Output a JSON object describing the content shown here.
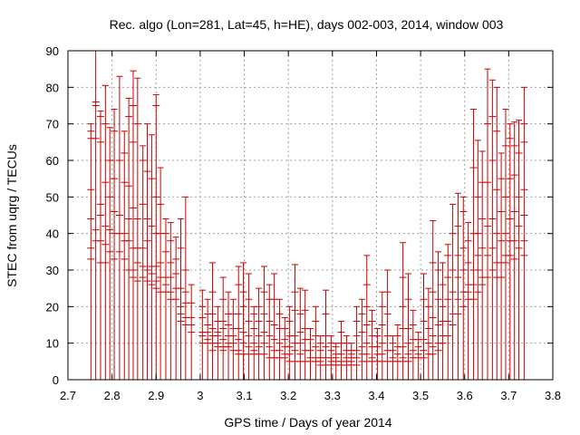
{
  "chart_data": {
    "type": "scatter",
    "style": "error-bars",
    "title": "Rec. algo (Lon=281, Lat=45, h=HE), days 002-003, 2014, window 003",
    "xlabel": "GPS time / Days of year 2014",
    "ylabel": "STEC from uqrg / TECUs",
    "xlim": [
      2.7,
      3.8
    ],
    "ylim": [
      0,
      90
    ],
    "xticks": [
      "2.7",
      "2.8",
      "2.9",
      "3",
      "3.1",
      "3.2",
      "3.3",
      "3.4",
      "3.5",
      "3.6",
      "3.7",
      "3.8"
    ],
    "yticks": [
      "0",
      "10",
      "20",
      "30",
      "40",
      "50",
      "60",
      "70",
      "80",
      "90"
    ],
    "grid": true,
    "color": "#cc0000",
    "errorbar_lower": 0,
    "points": [
      {
        "x": 2.752,
        "top": 70.0,
        "marks": [
          68,
          66,
          52,
          44,
          36,
          33
        ]
      },
      {
        "x": 2.763,
        "top": 90.0,
        "marks": [
          76,
          75,
          66,
          41,
          38
        ]
      },
      {
        "x": 2.774,
        "top": 73.5,
        "marks": [
          72,
          65,
          48,
          45,
          38,
          32
        ]
      },
      {
        "x": 2.785,
        "top": 80.5,
        "marks": [
          70,
          54,
          42,
          37,
          32
        ]
      },
      {
        "x": 2.795,
        "top": 69.0,
        "marks": [
          60,
          50,
          41,
          35
        ]
      },
      {
        "x": 2.805,
        "top": 74.0,
        "marks": [
          68,
          55,
          46,
          40,
          33
        ]
      },
      {
        "x": 2.817,
        "top": 83.0,
        "marks": [
          60,
          45,
          40,
          35
        ]
      },
      {
        "x": 2.828,
        "top": 68.0,
        "marks": [
          62,
          54,
          40,
          38,
          33
        ]
      },
      {
        "x": 2.838,
        "top": 77.0,
        "marks": [
          72,
          53,
          44,
          38,
          30
        ]
      },
      {
        "x": 2.848,
        "top": 84.5,
        "marks": [
          75,
          65,
          47,
          36,
          30,
          28
        ]
      },
      {
        "x": 2.858,
        "top": 82.5,
        "marks": [
          70,
          44,
          36,
          32,
          27
        ]
      },
      {
        "x": 2.87,
        "top": 64.0,
        "marks": [
          60,
          48,
          36,
          31,
          28
        ]
      },
      {
        "x": 2.88,
        "top": 70.0,
        "marks": [
          57,
          44,
          38,
          30,
          27
        ]
      },
      {
        "x": 2.89,
        "top": 67.0,
        "marks": [
          55,
          42,
          31,
          29,
          26
        ]
      },
      {
        "x": 2.9,
        "top": 78.0,
        "marks": [
          75,
          50,
          40,
          31,
          27,
          25
        ]
      },
      {
        "x": 2.91,
        "top": 58.0,
        "marks": [
          48,
          40,
          32,
          28,
          24
        ]
      },
      {
        "x": 2.922,
        "top": 44.0,
        "marks": [
          40,
          35,
          28,
          26,
          24
        ]
      },
      {
        "x": 2.933,
        "top": 43.0,
        "marks": [
          38,
          32,
          28,
          24,
          22
        ]
      },
      {
        "x": 2.945,
        "top": 39.0,
        "marks": [
          33,
          29,
          25,
          22
        ]
      },
      {
        "x": 2.956,
        "top": 44.0,
        "marks": [
          36,
          25,
          20,
          18,
          16
        ]
      },
      {
        "x": 2.967,
        "top": 50.0,
        "marks": [
          30,
          24,
          21,
          17,
          15
        ]
      },
      {
        "x": 2.98,
        "top": 26.0,
        "marks": [
          21,
          17,
          15,
          13
        ]
      },
      {
        "x": 3.005,
        "top": 24.5,
        "marks": [
          20,
          17,
          13,
          12,
          10
        ]
      },
      {
        "x": 3.017,
        "top": 22.0,
        "marks": [
          18,
          15,
          13,
          11,
          10
        ]
      },
      {
        "x": 3.028,
        "top": 32.0,
        "marks": [
          24,
          18,
          14,
          12,
          10,
          8
        ]
      },
      {
        "x": 3.04,
        "top": 20.0,
        "marks": [
          16,
          13,
          12,
          10,
          9
        ]
      },
      {
        "x": 3.052,
        "top": 28.0,
        "marks": [
          22,
          16,
          14,
          11,
          9,
          8
        ]
      },
      {
        "x": 3.064,
        "top": 24.0,
        "marks": [
          18,
          15,
          12,
          10,
          9
        ]
      },
      {
        "x": 3.075,
        "top": 22.0,
        "marks": [
          18,
          14,
          12,
          10,
          8
        ]
      },
      {
        "x": 3.087,
        "top": 31.0,
        "marks": [
          26,
          18,
          14,
          11,
          8,
          7
        ]
      },
      {
        "x": 3.098,
        "top": 32.0,
        "marks": [
          24,
          20,
          13,
          10,
          7
        ]
      },
      {
        "x": 3.11,
        "top": 29.0,
        "marks": [
          22,
          16,
          12,
          9,
          7
        ]
      },
      {
        "x": 3.122,
        "top": 20.0,
        "marks": [
          18,
          14,
          10,
          8,
          7
        ]
      },
      {
        "x": 3.133,
        "top": 25.0,
        "marks": [
          20,
          16,
          12,
          9,
          7
        ]
      },
      {
        "x": 3.145,
        "top": 31.0,
        "marks": [
          24,
          18,
          13,
          10,
          7
        ]
      },
      {
        "x": 3.157,
        "top": 26.0,
        "marks": [
          22,
          16,
          12,
          9,
          6
        ]
      },
      {
        "x": 3.168,
        "top": 29.0,
        "marks": [
          22,
          15,
          11,
          8,
          6
        ]
      },
      {
        "x": 3.18,
        "top": 22.0,
        "marks": [
          18,
          14,
          10,
          8,
          6
        ]
      },
      {
        "x": 3.192,
        "top": 17.0,
        "marks": [
          14,
          11,
          9,
          7,
          6
        ]
      },
      {
        "x": 3.203,
        "top": 20.0,
        "marks": [
          16,
          12,
          9,
          7,
          5
        ]
      },
      {
        "x": 3.215,
        "top": 31.5,
        "marks": [
          24,
          19,
          12,
          10,
          8,
          5
        ]
      },
      {
        "x": 3.227,
        "top": 25.0,
        "marks": [
          18,
          13,
          10,
          7,
          5
        ]
      },
      {
        "x": 3.238,
        "top": 24.5,
        "marks": [
          19,
          14,
          11,
          8,
          5
        ]
      },
      {
        "x": 3.25,
        "top": 14.0,
        "marks": [
          11,
          8,
          6,
          5
        ]
      },
      {
        "x": 3.262,
        "top": 20.0,
        "marks": [
          16,
          12,
          9,
          6,
          5
        ]
      },
      {
        "x": 3.273,
        "top": 12.0,
        "marks": [
          10,
          8,
          6,
          5,
          4
        ]
      },
      {
        "x": 3.285,
        "top": 24.5,
        "marks": [
          18,
          12,
          9,
          6,
          4
        ]
      },
      {
        "x": 3.297,
        "top": 12.0,
        "marks": [
          10,
          8,
          6,
          5,
          4
        ]
      },
      {
        "x": 3.308,
        "top": 10.0,
        "marks": [
          9,
          7,
          6,
          5,
          4
        ]
      },
      {
        "x": 3.32,
        "top": 16.0,
        "marks": [
          13,
          10,
          7,
          5,
          4
        ]
      },
      {
        "x": 3.332,
        "top": 12.0,
        "marks": [
          10,
          8,
          6,
          5,
          4
        ]
      },
      {
        "x": 3.343,
        "top": 10.0,
        "marks": [
          8,
          7,
          6,
          5,
          4
        ]
      },
      {
        "x": 3.355,
        "top": 20.0,
        "marks": [
          16,
          12,
          8,
          6,
          4
        ]
      },
      {
        "x": 3.367,
        "top": 22.0,
        "marks": [
          18,
          13,
          9,
          7,
          5
        ]
      },
      {
        "x": 3.378,
        "top": 34.0,
        "marks": [
          26,
          20,
          15,
          10,
          7,
          5
        ]
      },
      {
        "x": 3.39,
        "top": 19.0,
        "marks": [
          16,
          12,
          9,
          6,
          5
        ]
      },
      {
        "x": 3.402,
        "top": 14.0,
        "marks": [
          12,
          9,
          7,
          5
        ]
      },
      {
        "x": 3.413,
        "top": 24.0,
        "marks": [
          20,
          15,
          10,
          7,
          5
        ]
      },
      {
        "x": 3.425,
        "top": 30.0,
        "marks": [
          24,
          18,
          12,
          8,
          5
        ]
      },
      {
        "x": 3.437,
        "top": 12.0,
        "marks": [
          10,
          8,
          6,
          5
        ]
      },
      {
        "x": 3.448,
        "top": 15.0,
        "marks": [
          12,
          9,
          7,
          5
        ]
      },
      {
        "x": 3.46,
        "top": 37.5,
        "marks": [
          28,
          20,
          14,
          9,
          6,
          5
        ]
      },
      {
        "x": 3.472,
        "top": 29.0,
        "marks": [
          22,
          14,
          10,
          7,
          5
        ]
      },
      {
        "x": 3.483,
        "top": 19.0,
        "marks": [
          15,
          11,
          8,
          6
        ]
      },
      {
        "x": 3.495,
        "top": 13.0,
        "marks": [
          11,
          9,
          7,
          6
        ]
      },
      {
        "x": 3.507,
        "top": 29.0,
        "marks": [
          22,
          16,
          11,
          8,
          6
        ]
      },
      {
        "x": 3.518,
        "top": 25.0,
        "marks": [
          20,
          14,
          10,
          7
        ]
      },
      {
        "x": 3.528,
        "top": 43.5,
        "marks": [
          32,
          24,
          17,
          12,
          9,
          7
        ]
      },
      {
        "x": 3.54,
        "top": 35.0,
        "marks": [
          30,
          22,
          15,
          10,
          8
        ]
      },
      {
        "x": 3.55,
        "top": 32.0,
        "marks": [
          26,
          20,
          16,
          12,
          10
        ]
      },
      {
        "x": 3.562,
        "top": 37.0,
        "marks": [
          34,
          28,
          22,
          16,
          12
        ]
      },
      {
        "x": 3.573,
        "top": 48.0,
        "marks": [
          40,
          30,
          24,
          18,
          15
        ]
      },
      {
        "x": 3.585,
        "top": 51.0,
        "marks": [
          42,
          34,
          28,
          22,
          18
        ]
      },
      {
        "x": 3.597,
        "top": 50.0,
        "marks": [
          46,
          36,
          30,
          24,
          20
        ]
      },
      {
        "x": 3.608,
        "top": 43.0,
        "marks": [
          38,
          32,
          26,
          24,
          22
        ]
      },
      {
        "x": 3.62,
        "top": 74.0,
        "marks": [
          58,
          40,
          30,
          26,
          22
        ]
      },
      {
        "x": 3.63,
        "top": 65.5,
        "marks": [
          50,
          40,
          34,
          30,
          24
        ]
      },
      {
        "x": 3.64,
        "top": 62.5,
        "marks": [
          54,
          44,
          36,
          28,
          26
        ]
      },
      {
        "x": 3.652,
        "top": 85.0,
        "marks": [
          70,
          54,
          42,
          34,
          28
        ]
      },
      {
        "x": 3.663,
        "top": 82.0,
        "marks": [
          72,
          60,
          44,
          36,
          30
        ]
      },
      {
        "x": 3.673,
        "top": 80.0,
        "marks": [
          68,
          52,
          40,
          32,
          28
        ]
      },
      {
        "x": 3.683,
        "top": 62.0,
        "marks": [
          55,
          46,
          38,
          32,
          28
        ]
      },
      {
        "x": 3.693,
        "top": 74.0,
        "marks": [
          64,
          50,
          40,
          34,
          32
        ]
      },
      {
        "x": 3.703,
        "top": 70.0,
        "marks": [
          66,
          55,
          44,
          38,
          34
        ]
      },
      {
        "x": 3.713,
        "top": 70.5,
        "marks": [
          64,
          56,
          46,
          38,
          33
        ]
      },
      {
        "x": 3.723,
        "top": 71.0,
        "marks": [
          62,
          50,
          42,
          36
        ]
      },
      {
        "x": 3.735,
        "top": 80.0,
        "marks": [
          70,
          65,
          52,
          45,
          38,
          34
        ]
      }
    ]
  }
}
